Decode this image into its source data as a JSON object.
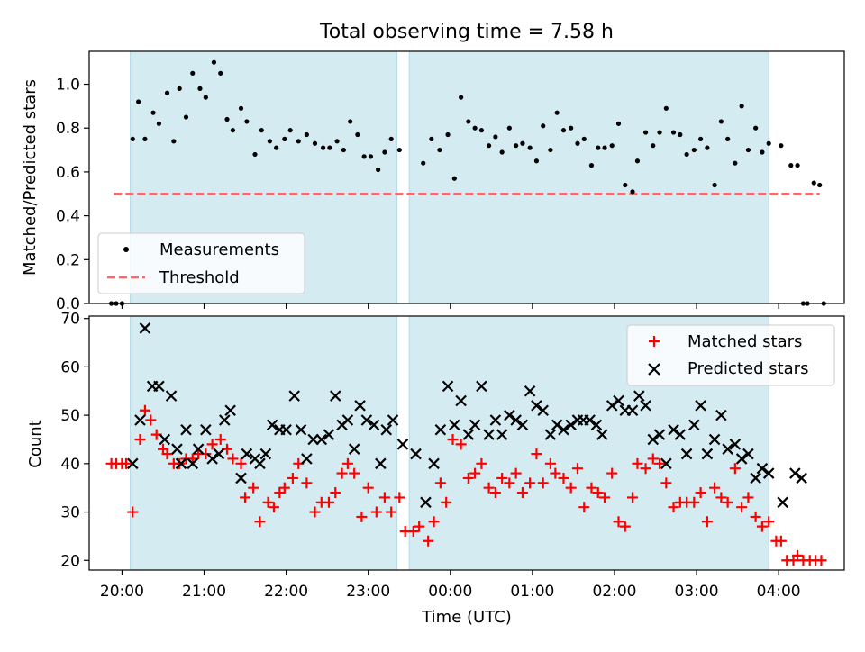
{
  "figure": {
    "title": "Total observing time = 7.58 h",
    "colors": {
      "shade": "#add8e6",
      "measurement": "#000000",
      "threshold": "#ff6666",
      "matched": "#ff0000",
      "predicted": "#000000"
    }
  },
  "chart_data": [
    {
      "type": "scatter",
      "ylabel": "Matched/Predicted stars",
      "xlim": [
        19.6,
        28.8
      ],
      "ylim": [
        0,
        1.15
      ],
      "yticks": [
        0.0,
        0.2,
        0.4,
        0.6,
        0.8,
        1.0
      ],
      "ytick_labels": [
        "0.0",
        "0.2",
        "0.4",
        "0.6",
        "0.8",
        "1.0"
      ],
      "shaded_intervals": [
        [
          20.1,
          23.35
        ],
        [
          23.5,
          27.88
        ]
      ],
      "legend": {
        "position": "lower-left",
        "entries": [
          "Measurements",
          "Threshold"
        ]
      },
      "threshold": {
        "name": "Threshold",
        "value": 0.5,
        "x_range": [
          19.9,
          28.5
        ]
      },
      "series": [
        {
          "name": "Measurements",
          "marker": "dot",
          "x": [
            19.87,
            19.93,
            20.0,
            20.13,
            20.2,
            20.28,
            20.38,
            20.45,
            20.55,
            20.63,
            20.7,
            20.78,
            20.86,
            20.95,
            21.02,
            21.12,
            21.2,
            21.28,
            21.35,
            21.45,
            21.52,
            21.62,
            21.7,
            21.8,
            21.88,
            21.98,
            22.05,
            22.15,
            22.25,
            22.35,
            22.45,
            22.53,
            22.62,
            22.7,
            22.78,
            22.87,
            22.95,
            23.03,
            23.12,
            23.2,
            23.28,
            23.38,
            23.67,
            23.77,
            23.87,
            23.97,
            24.05,
            24.13,
            24.22,
            24.3,
            24.38,
            24.47,
            24.55,
            24.63,
            24.72,
            24.8,
            24.88,
            24.97,
            25.05,
            25.13,
            25.22,
            25.3,
            25.38,
            25.47,
            25.55,
            25.63,
            25.72,
            25.8,
            25.88,
            25.97,
            26.05,
            26.13,
            26.22,
            26.28,
            26.38,
            26.47,
            26.55,
            26.63,
            26.72,
            26.8,
            26.88,
            26.97,
            27.05,
            27.13,
            27.22,
            27.3,
            27.38,
            27.47,
            27.55,
            27.63,
            27.72,
            27.8,
            27.88,
            28.03,
            28.15,
            28.23,
            28.3,
            28.35,
            28.43,
            28.5,
            28.55
          ],
          "y": [
            0.0,
            0.0,
            0.0,
            0.75,
            0.92,
            0.75,
            0.87,
            0.82,
            0.96,
            0.74,
            0.98,
            0.85,
            1.05,
            0.98,
            0.94,
            1.1,
            1.05,
            0.84,
            0.79,
            0.89,
            0.83,
            0.68,
            0.79,
            0.74,
            0.71,
            0.75,
            0.79,
            0.74,
            0.77,
            0.73,
            0.71,
            0.71,
            0.74,
            0.7,
            0.83,
            0.77,
            0.67,
            0.67,
            0.61,
            0.69,
            0.75,
            0.7,
            0.64,
            0.75,
            0.7,
            0.77,
            0.57,
            0.94,
            0.83,
            0.8,
            0.79,
            0.72,
            0.76,
            0.69,
            0.8,
            0.72,
            0.73,
            0.71,
            0.65,
            0.81,
            0.7,
            0.87,
            0.79,
            0.8,
            0.73,
            0.75,
            0.63,
            0.71,
            0.71,
            0.72,
            0.82,
            0.54,
            0.51,
            0.65,
            0.78,
            0.72,
            0.78,
            0.89,
            0.78,
            0.77,
            0.68,
            0.7,
            0.75,
            0.71,
            0.54,
            0.83,
            0.75,
            0.64,
            0.9,
            0.7,
            0.8,
            0.69,
            0.73,
            0.72,
            0.63,
            0.63,
            0.0,
            0.0,
            0.55,
            0.54,
            0.0
          ]
        }
      ]
    },
    {
      "type": "scatter",
      "xlabel": "Time (UTC)",
      "ylabel": "Count",
      "xlim": [
        19.6,
        28.8
      ],
      "ylim": [
        18,
        70.5
      ],
      "yticks": [
        20,
        30,
        40,
        50,
        60,
        70
      ],
      "ytick_labels": [
        "20",
        "30",
        "40",
        "50",
        "60",
        "70"
      ],
      "xticks": [
        20,
        21,
        22,
        23,
        24,
        25,
        26,
        27,
        28
      ],
      "xtick_labels": [
        "20:00",
        "21:00",
        "22:00",
        "23:00",
        "00:00",
        "01:00",
        "02:00",
        "03:00",
        "04:00"
      ],
      "shaded_intervals": [
        [
          20.1,
          23.35
        ],
        [
          23.5,
          27.88
        ]
      ],
      "legend": {
        "position": "top-right",
        "entries": [
          "Matched stars",
          "Predicted stars"
        ]
      },
      "series": [
        {
          "name": "Matched stars",
          "marker": "plus",
          "x": [
            19.87,
            19.93,
            20.0,
            20.05,
            20.13,
            20.22,
            20.28,
            20.35,
            20.42,
            20.5,
            20.55,
            20.63,
            20.7,
            20.78,
            20.86,
            20.93,
            21.02,
            21.1,
            21.2,
            21.28,
            21.35,
            21.45,
            21.5,
            21.6,
            21.68,
            21.78,
            21.85,
            21.92,
            21.98,
            22.08,
            22.15,
            22.25,
            22.35,
            22.43,
            22.52,
            22.6,
            22.68,
            22.75,
            22.83,
            22.92,
            23.0,
            23.1,
            23.2,
            23.28,
            23.38,
            23.45,
            23.55,
            23.62,
            23.73,
            23.8,
            23.88,
            23.95,
            24.03,
            24.13,
            24.22,
            24.3,
            24.38,
            24.47,
            24.55,
            24.63,
            24.72,
            24.8,
            24.88,
            24.97,
            25.05,
            25.13,
            25.22,
            25.28,
            25.38,
            25.47,
            25.55,
            25.63,
            25.72,
            25.8,
            25.88,
            25.97,
            26.05,
            26.13,
            26.22,
            26.28,
            26.38,
            26.47,
            26.55,
            26.63,
            26.72,
            26.8,
            26.88,
            26.97,
            27.05,
            27.13,
            27.22,
            27.3,
            27.38,
            27.47,
            27.55,
            27.63,
            27.72,
            27.8,
            27.88,
            27.97,
            28.03,
            28.1,
            28.18,
            28.23,
            28.3,
            28.38,
            28.45,
            28.52
          ],
          "y": [
            40,
            40,
            40,
            40,
            30,
            45,
            51,
            49,
            46,
            43,
            42,
            40,
            40,
            41,
            41,
            42,
            42,
            44,
            45,
            43,
            41,
            40,
            33,
            35,
            28,
            32,
            31,
            34,
            35,
            37,
            40,
            36,
            30,
            32,
            32,
            34,
            38,
            40,
            38,
            29,
            35,
            30,
            33,
            30,
            33,
            26,
            26,
            27,
            24,
            28,
            36,
            32,
            45,
            44,
            37,
            38,
            40,
            35,
            34,
            37,
            36,
            38,
            34,
            36,
            42,
            36,
            40,
            38,
            37,
            35,
            39,
            31,
            35,
            34,
            33,
            38,
            28,
            27,
            33,
            40,
            39,
            41,
            40,
            36,
            31,
            32,
            32,
            32,
            34,
            28,
            35,
            33,
            32,
            39,
            31,
            33,
            29,
            27,
            28,
            24,
            24,
            20,
            20,
            21,
            20,
            20,
            20,
            20
          ]
        },
        {
          "name": "Predicted stars",
          "marker": "x",
          "x": [
            20.13,
            20.22,
            20.28,
            20.37,
            20.45,
            20.52,
            20.6,
            20.67,
            20.72,
            20.78,
            20.86,
            20.93,
            21.02,
            21.1,
            21.18,
            21.25,
            21.32,
            21.45,
            21.52,
            21.62,
            21.68,
            21.75,
            21.83,
            21.92,
            22.0,
            22.1,
            22.18,
            22.25,
            22.33,
            22.43,
            22.52,
            22.6,
            22.68,
            22.75,
            22.83,
            22.9,
            22.98,
            23.07,
            23.15,
            23.22,
            23.3,
            23.42,
            23.58,
            23.7,
            23.8,
            23.88,
            23.97,
            24.05,
            24.13,
            24.22,
            24.3,
            24.38,
            24.47,
            24.55,
            24.63,
            24.72,
            24.8,
            24.88,
            24.97,
            25.05,
            25.13,
            25.22,
            25.3,
            25.38,
            25.47,
            25.55,
            25.62,
            25.7,
            25.78,
            25.85,
            25.97,
            26.05,
            26.13,
            26.22,
            26.3,
            26.38,
            26.47,
            26.55,
            26.63,
            26.72,
            26.8,
            26.88,
            26.97,
            27.05,
            27.13,
            27.22,
            27.3,
            27.38,
            27.47,
            27.55,
            27.63,
            27.72,
            27.8,
            27.88,
            28.05,
            28.2,
            28.28
          ],
          "y": [
            40,
            49,
            68,
            56,
            56,
            45,
            54,
            43,
            40,
            47,
            40,
            43,
            47,
            41,
            42,
            49,
            51,
            37,
            42,
            41,
            40,
            42,
            48,
            47,
            47,
            54,
            47,
            41,
            45,
            45,
            46,
            54,
            48,
            49,
            43,
            52,
            49,
            48,
            40,
            47,
            49,
            44,
            42,
            32,
            40,
            47,
            56,
            48,
            53,
            46,
            48,
            56,
            46,
            49,
            46,
            50,
            49,
            48,
            55,
            52,
            51,
            46,
            48,
            47,
            48,
            49,
            49,
            49,
            48,
            46,
            52,
            53,
            51,
            51,
            54,
            52,
            45,
            46,
            40,
            47,
            46,
            42,
            48,
            52,
            42,
            45,
            50,
            43,
            44,
            41,
            42,
            37,
            39,
            38,
            32,
            38,
            37
          ]
        }
      ]
    }
  ]
}
